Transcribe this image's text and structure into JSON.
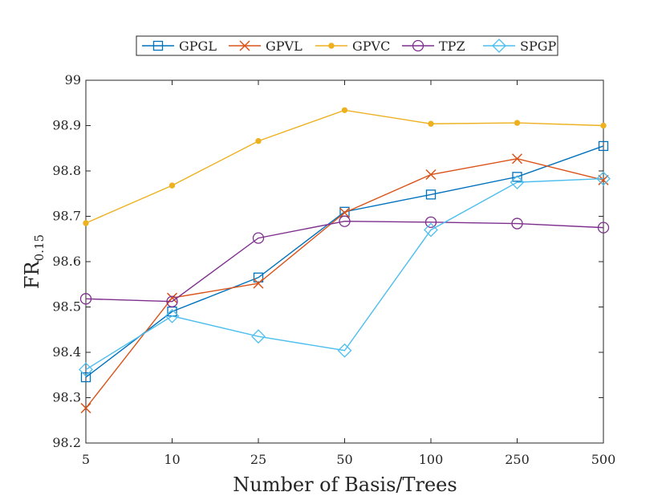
{
  "chart_data": {
    "type": "line",
    "categories": [
      "5",
      "10",
      "25",
      "50",
      "100",
      "250",
      "500"
    ],
    "xlabel": "Number of Basis/Trees",
    "ylabel_main": "FR",
    "ylabel_sub": "0.15",
    "ylim": [
      98.2,
      99
    ],
    "yticks": [
      "98.2",
      "98.3",
      "98.4",
      "98.5",
      "98.6",
      "98.7",
      "98.8",
      "98.9",
      "99"
    ],
    "grid": false,
    "legend_position": "top",
    "series": [
      {
        "name": "GPGL",
        "color": "#0072BD",
        "marker": "square",
        "values": [
          98.345,
          98.49,
          98.565,
          98.71,
          98.748,
          98.787,
          98.855
        ]
      },
      {
        "name": "GPVL",
        "color": "#D95319",
        "marker": "x",
        "values": [
          98.277,
          98.52,
          98.552,
          98.708,
          98.792,
          98.827,
          98.78
        ]
      },
      {
        "name": "GPVC",
        "color": "#EDB120",
        "marker": "dot",
        "values": [
          98.685,
          98.768,
          98.866,
          98.934,
          98.904,
          98.906,
          98.9
        ]
      },
      {
        "name": "TPZ",
        "color": "#7E2F8E",
        "marker": "circle",
        "values": [
          98.518,
          98.512,
          98.652,
          98.689,
          98.687,
          98.684,
          98.675
        ]
      },
      {
        "name": "SPGP",
        "color": "#4DBEEE",
        "marker": "diamond",
        "values": [
          98.362,
          98.48,
          98.435,
          98.404,
          98.67,
          98.775,
          98.783
        ]
      }
    ]
  }
}
